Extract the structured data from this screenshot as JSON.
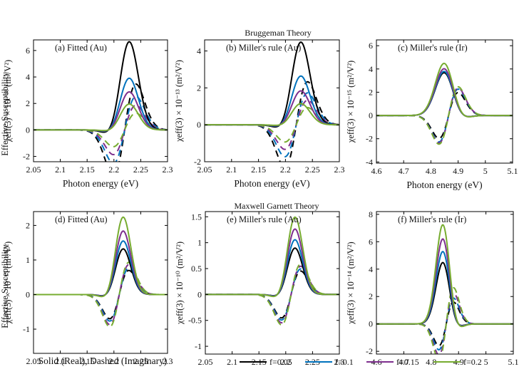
{
  "figure": {
    "row_titles": [
      "Bruggeman Theory",
      "Maxwell Garnett Theory"
    ],
    "shared_ylabel": "Effective Susceptibility",
    "bottom_note": "Solid (Real), Dashed (Imaginary)",
    "legend": [
      "f=0.05",
      "f=0.1",
      "f=0.15",
      "f=0.2"
    ],
    "colors": [
      "#000000",
      "#0072BD",
      "#7E2F8E",
      "#77AC30"
    ]
  },
  "chart_data": [
    {
      "type": "line",
      "panel": "a",
      "title": "(a) Fitted (Au)",
      "xlabel": "Photon energy (eV)",
      "ylabel": "χeff(3) × 10⁻¹⁸ (m²/V²)",
      "xlim": [
        2.05,
        2.3
      ],
      "ylim": [
        -2.4,
        6.8
      ],
      "xticks": [
        "2.05",
        "2.1",
        "2.15",
        "2.2",
        "2.25",
        "2.3"
      ],
      "yticks": [
        "-2",
        "0",
        "2",
        "4",
        "6"
      ],
      "model": {
        "x0": 2.22,
        "w": 0.026,
        "rx": 1,
        "ix": 1.35,
        "iw": 1.15,
        "re": [
          5.8,
          3.4,
          2.5,
          1.7
        ],
        "im": [
          5.2,
          3.8,
          2.8,
          1.9
        ]
      },
      "legend": [
        "f=0.05",
        "f=0.1",
        "f=0.15",
        "f=0.2"
      ]
    },
    {
      "type": "line",
      "panel": "b",
      "title": "(b) Miller's rule (Au)",
      "xlabel": "Photon energy (eV)",
      "ylabel": "χeff(3) × 10⁻¹³ (m²/V²)",
      "xlim": [
        2.05,
        2.3
      ],
      "ylim": [
        -2.0,
        4.6
      ],
      "xticks": [
        "2.05",
        "2.1",
        "2.15",
        "2.2",
        "2.25",
        "2.3"
      ],
      "yticks": [
        "-2",
        "0",
        "2",
        "4"
      ],
      "model": {
        "x0": 2.22,
        "w": 0.026,
        "rx": 1,
        "ix": 1.35,
        "iw": 1.15,
        "re": [
          3.9,
          2.3,
          1.6,
          1.0
        ],
        "im": [
          3.5,
          2.6,
          2.0,
          1.4
        ]
      },
      "legend": [
        "f=0.05",
        "f=0.1",
        "f=0.15",
        "f=0.2"
      ]
    },
    {
      "type": "line",
      "panel": "c",
      "title": "(c) Miller's rule (Ir)",
      "xlabel": "Photon energy (eV)",
      "ylabel": "χeff(3) × 10⁻¹⁵ (m²/V²)",
      "xlim": [
        4.6,
        5.1
      ],
      "ylim": [
        -4.1,
        6.5
      ],
      "xticks": [
        "4.6",
        "4.7",
        "4.8",
        "4.9",
        "5",
        "5.1"
      ],
      "yticks": [
        "-4",
        "-2",
        "0",
        "2",
        "4",
        "6"
      ],
      "model": {
        "x0": 4.865,
        "w": 0.05,
        "rx": -1,
        "ix": 1.0,
        "iw": 1.0,
        "re": [
          3.2,
          3.3,
          3.5,
          3.9
        ],
        "im": [
          4.0,
          4.6,
          4.8,
          5.0
        ]
      },
      "legend": [
        "f=0.05",
        "f=0.1",
        "f=0.15",
        "f=0.2"
      ]
    },
    {
      "type": "line",
      "panel": "d",
      "title": "(d) Fitted (Au)",
      "xlabel": "",
      "ylabel": "χeff(3) × 10⁻¹⁵ (m²/V²)",
      "xlim": [
        2.05,
        2.3
      ],
      "ylim": [
        -1.7,
        2.4
      ],
      "xticks": [
        "2.05",
        "2.1",
        "2.15",
        "2.2",
        "2.25",
        "2.3"
      ],
      "yticks": [
        "-1",
        "0",
        "1",
        "2"
      ],
      "model": {
        "x0": 2.21,
        "w": 0.022,
        "rx": 1,
        "ix": 1.35,
        "iw": 1.15,
        "re": [
          1.15,
          1.35,
          1.6,
          1.95
        ],
        "im": [
          1.05,
          1.15,
          1.3,
          1.4
        ]
      },
      "legend": [
        "f=0.05",
        "f=0.1",
        "f=0.15",
        "f=0.2"
      ]
    },
    {
      "type": "line",
      "panel": "e",
      "title": "(e) Miller's rule (Au)",
      "xlabel": "",
      "ylabel": "χeff(3) × 10⁻¹⁰ (m²/V²)",
      "xlim": [
        2.05,
        2.3
      ],
      "ylim": [
        -1.15,
        1.6
      ],
      "xticks": [
        "2.05",
        "2.1",
        "2.15",
        "2.2",
        "2.25",
        "2.3"
      ],
      "yticks": [
        "-1",
        "-0.5",
        "0",
        "0.5",
        "1",
        "1.5"
      ],
      "model": {
        "x0": 2.21,
        "w": 0.022,
        "rx": 1,
        "ix": 1.35,
        "iw": 1.15,
        "re": [
          0.78,
          0.92,
          1.1,
          1.3
        ],
        "im": [
          0.68,
          0.74,
          0.82,
          0.88
        ]
      },
      "legend": [
        "f=0.05",
        "f=0.1",
        "f=0.15",
        "f=0.2"
      ]
    },
    {
      "type": "line",
      "panel": "f",
      "title": "(f) Miller's rule (Ir)",
      "xlabel": "",
      "ylabel": "χeff(3) × 10⁻¹⁴ (m²/V²)",
      "xlim": [
        4.6,
        5.1
      ],
      "ylim": [
        -2.2,
        8.2
      ],
      "xticks": [
        "4.6",
        "4.7",
        "4.8",
        "4.9",
        "5",
        "5.1"
      ],
      "yticks": [
        "-2",
        "0",
        "2",
        "4",
        "6",
        "8"
      ],
      "model": {
        "x0": 4.855,
        "w": 0.038,
        "rx": -1,
        "ix": 0.85,
        "iw": 1.0,
        "re": [
          3.9,
          4.6,
          5.4,
          6.3
        ],
        "im": [
          3.8,
          4.5,
          5.4,
          6.3
        ]
      },
      "legend": [
        "f=0.05",
        "f=0.1",
        "f=0.15",
        "f=0.2"
      ]
    }
  ]
}
